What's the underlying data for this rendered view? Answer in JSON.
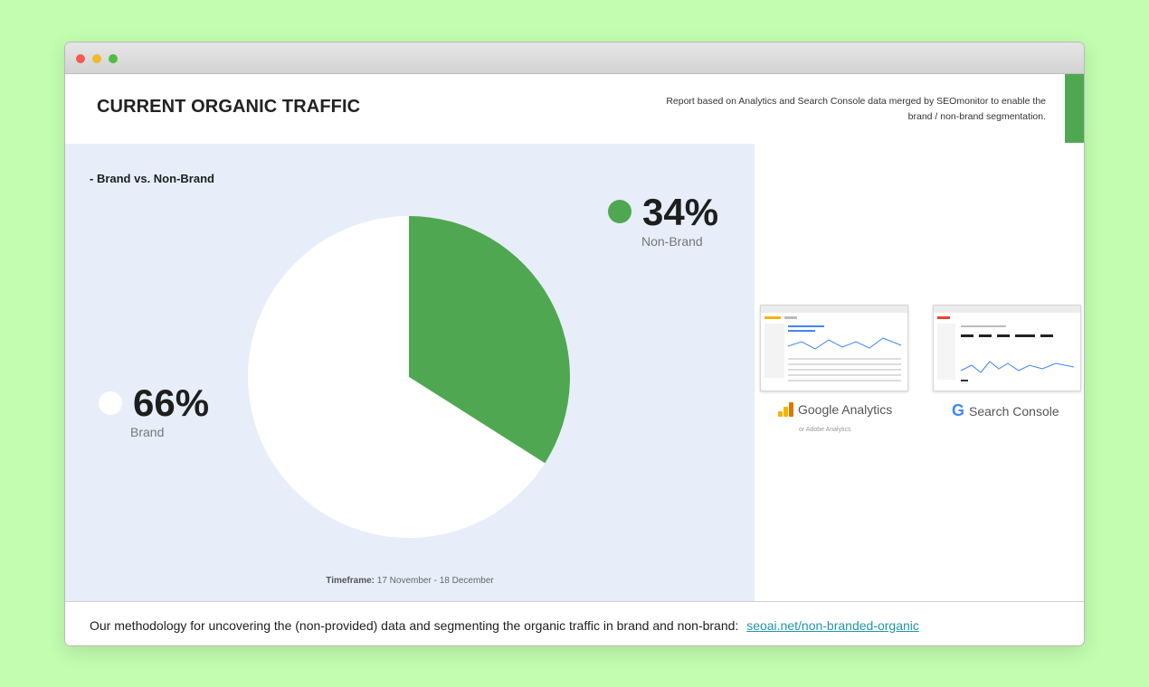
{
  "header": {
    "title": "CURRENT ORGANIC TRAFFIC",
    "note_line1": "Report based on Analytics and Search Console data merged by SEOmonitor to enable the",
    "note_line2": "brand / non-brand segmentation."
  },
  "chart_panel": {
    "subtitle": "- Brand vs. Non-Brand",
    "timeframe_label": "Timeframe:",
    "timeframe_value": "17 November - 18 December"
  },
  "chart_data": {
    "type": "pie",
    "title": "- Brand vs. Non-Brand",
    "slices": [
      {
        "label": "Non-Brand",
        "value": 34,
        "display": "34%",
        "color": "#4fa851"
      },
      {
        "label": "Brand",
        "value": 66,
        "display": "66%",
        "color": "#ffffff"
      }
    ],
    "legend": "outside labels left and top-right"
  },
  "tools": {
    "google_analytics_label": "Google Analytics",
    "google_analytics_sub": "or Adobe Analytics",
    "search_console_label": "Search Console",
    "search_console_mark": "G"
  },
  "footer": {
    "text": "Our methodology for uncovering the (non-provided) data and segmenting the organic traffic in brand and non-brand:",
    "link_text": "seoai.net/non-branded-organic"
  },
  "colors": {
    "accent_green": "#4fa851",
    "panel_bg": "#e7eefa",
    "page_bg": "#c2fdb0",
    "link": "#2196a8"
  }
}
